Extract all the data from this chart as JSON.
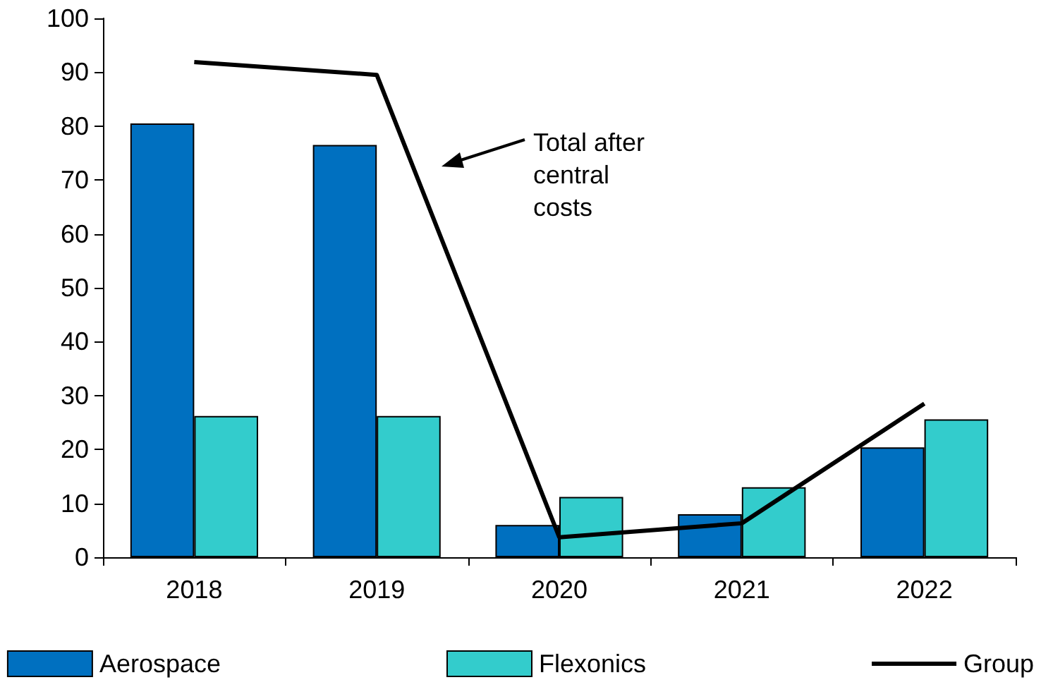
{
  "chart_data": {
    "type": "bar",
    "categories": [
      "2018",
      "2019",
      "2020",
      "2021",
      "2022"
    ],
    "series": [
      {
        "name": "Aerospace",
        "color": "#0070c0",
        "values": [
          80.5,
          76.5,
          6,
          8,
          20.4
        ]
      },
      {
        "name": "Flexonics",
        "color": "#33cccc",
        "values": [
          26.2,
          26.2,
          11.2,
          13,
          25.6
        ]
      },
      {
        "name": "Group",
        "type": "line",
        "color": "#000000",
        "values": [
          91.9,
          89.5,
          3.7,
          6.3,
          28.5
        ]
      }
    ],
    "ylim": [
      0,
      100
    ],
    "yticks": [
      0,
      10,
      20,
      30,
      40,
      50,
      60,
      70,
      80,
      90,
      100
    ],
    "annotations": [
      "Total after central costs"
    ],
    "grid": false,
    "legend": "bottom",
    "marker": "none"
  }
}
